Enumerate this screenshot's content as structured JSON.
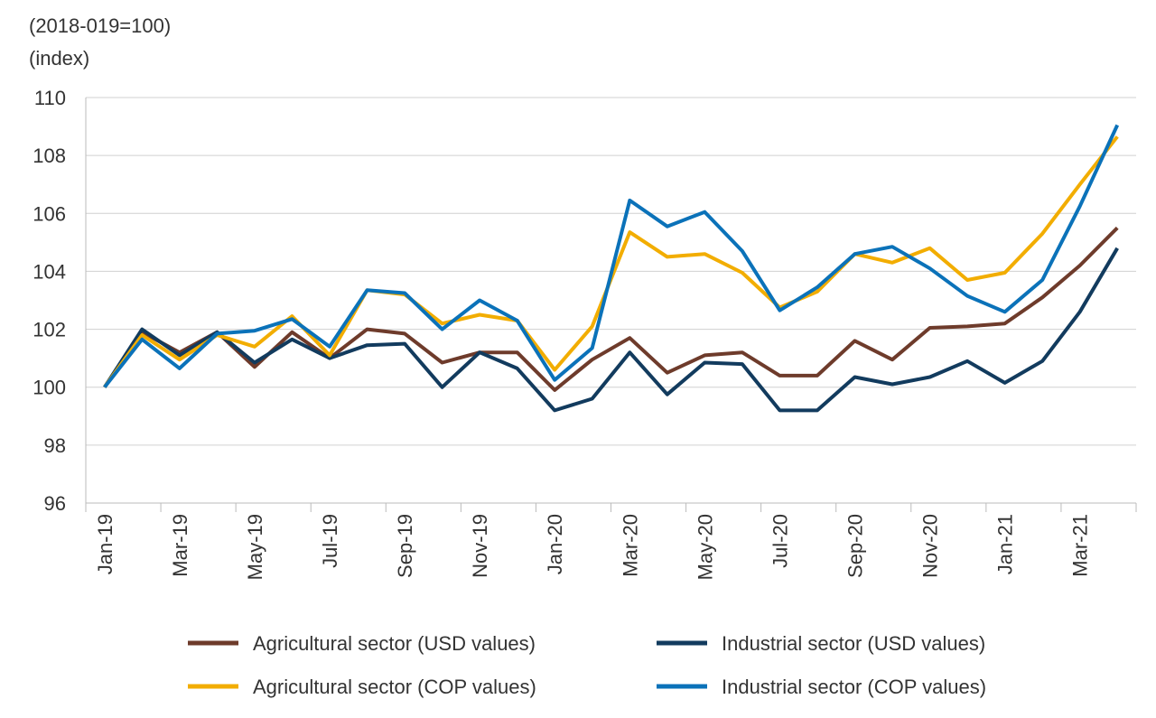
{
  "chart_data": {
    "type": "line",
    "unit_label_1": "(2018-019=100)",
    "unit_label_2": "(index)",
    "ylim": [
      96,
      110
    ],
    "yticks": [
      96,
      98,
      100,
      102,
      104,
      106,
      108,
      110
    ],
    "grid": true,
    "legend_position": "bottom",
    "categories": [
      "Jan-19",
      "Feb-19",
      "Mar-19",
      "Apr-19",
      "May-19",
      "Jun-19",
      "Jul-19",
      "Aug-19",
      "Sep-19",
      "Oct-19",
      "Nov-19",
      "Dec-19",
      "Jan-20",
      "Feb-20",
      "Mar-20",
      "Apr-20",
      "May-20",
      "Jun-20",
      "Jul-20",
      "Aug-20",
      "Sep-20",
      "Oct-20",
      "Nov-20",
      "Dec-20",
      "Jan-21",
      "Feb-21",
      "Mar-21",
      "Apr-21"
    ],
    "tick_labels": [
      "Jan-19",
      "Mar-19",
      "May-19",
      "Jul-19",
      "Sep-19",
      "Nov-19",
      "Jan-20",
      "Mar-20",
      "May-20",
      "Jul-20",
      "Sep-20",
      "Nov-20",
      "Jan-21",
      "Mar-21"
    ],
    "series": [
      {
        "name": "Agricultural sector (USD values)",
        "color": "#6e3b2b",
        "values": [
          100,
          101.9,
          101.2,
          101.9,
          100.7,
          101.9,
          101.0,
          102.0,
          101.85,
          100.85,
          101.2,
          101.2,
          99.9,
          100.95,
          101.7,
          100.5,
          101.1,
          101.2,
          100.4,
          100.4,
          101.6,
          100.95,
          102.05,
          102.1,
          102.2,
          103.1,
          104.2,
          105.5
        ]
      },
      {
        "name": "Industrial sector (USD values)",
        "color": "#123b5e",
        "values": [
          100,
          102.0,
          101.1,
          101.9,
          100.85,
          101.65,
          101.0,
          101.45,
          101.5,
          100.0,
          101.2,
          100.65,
          99.2,
          99.6,
          101.2,
          99.75,
          100.85,
          100.8,
          99.2,
          99.2,
          100.35,
          100.1,
          100.35,
          100.9,
          100.15,
          100.9,
          102.6,
          104.8
        ]
      },
      {
        "name": "Agricultural sector (COP values)",
        "color": "#f2ad00",
        "values": [
          100,
          101.8,
          100.95,
          101.8,
          101.4,
          102.45,
          101.1,
          103.35,
          103.2,
          102.2,
          102.5,
          102.3,
          100.6,
          102.1,
          105.35,
          104.5,
          104.6,
          103.95,
          102.75,
          103.3,
          104.6,
          104.3,
          104.8,
          103.7,
          103.95,
          105.3,
          107.0,
          108.65
        ]
      },
      {
        "name": "Industrial sector (COP values)",
        "color": "#0b72b9",
        "values": [
          100,
          101.65,
          100.65,
          101.85,
          101.95,
          102.35,
          101.4,
          103.35,
          103.25,
          102.0,
          103.0,
          102.3,
          100.25,
          101.35,
          106.45,
          105.55,
          106.05,
          104.7,
          102.65,
          103.45,
          104.6,
          104.85,
          104.1,
          103.15,
          102.6,
          103.7,
          106.25,
          109.05
        ]
      }
    ]
  }
}
